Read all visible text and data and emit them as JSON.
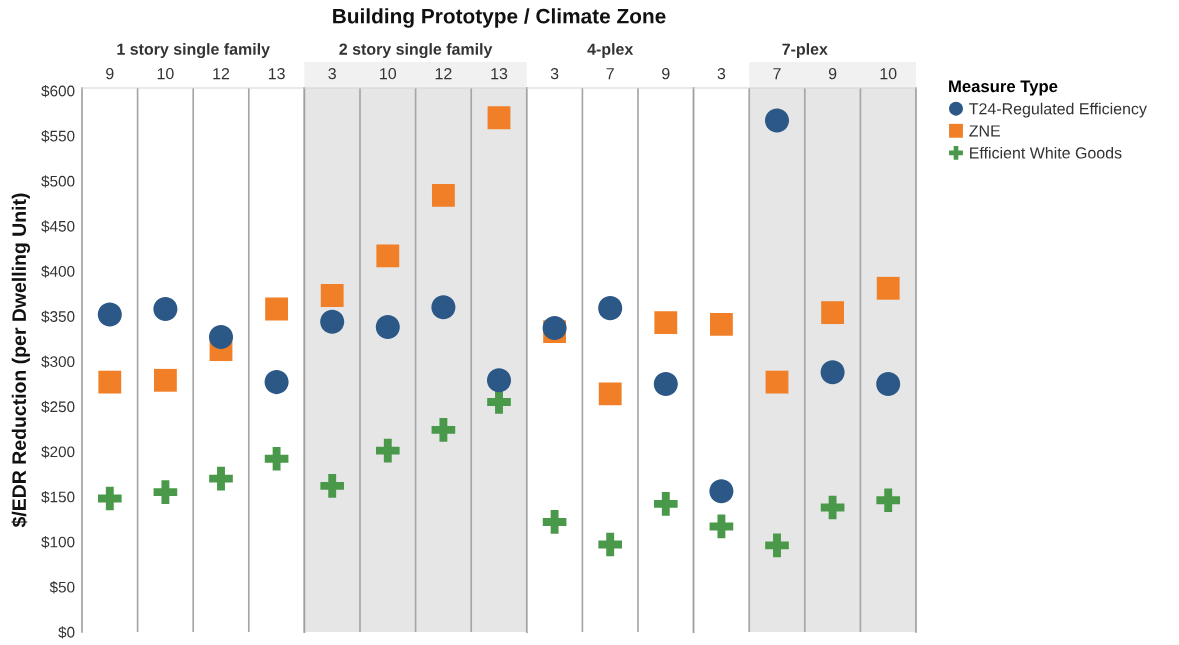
{
  "chart_data": [
    {
      "type": "scatter",
      "title": "1 story single family",
      "ylabel": "$/EDR Reduction (per Dwelling Unit)",
      "annotations": [
        "Building Prototype / Climate Zone"
      ],
      "legend_title": "Measure Type",
      "legend": "top right",
      "categories": [
        "9",
        "10",
        "12",
        "13"
      ],
      "series": [
        {
          "name": "T24-Regulated Efficiency",
          "color": "#2b5886",
          "marker": "circle",
          "values": [
            352,
            358,
            327,
            277
          ]
        },
        {
          "name": "ZNE",
          "color": "#f07f27",
          "marker": "square",
          "values": [
            277,
            279,
            313,
            358
          ]
        },
        {
          "name": "Efficient White Goods",
          "color": "#4a984a",
          "marker": "cross",
          "values": [
            148,
            155,
            170,
            192
          ]
        }
      ],
      "ylim": [
        0,
        603
      ],
      "yticks": [
        {
          "value": 0,
          "label": "$0"
        },
        {
          "value": 50,
          "label": "$50"
        },
        {
          "value": 100,
          "label": "$100"
        },
        {
          "value": 150,
          "label": "$150"
        },
        {
          "value": 200,
          "label": "$200"
        },
        {
          "value": 250,
          "label": "$250"
        },
        {
          "value": 300,
          "label": "$300"
        },
        {
          "value": 350,
          "label": "$350"
        },
        {
          "value": 400,
          "label": "$400"
        },
        {
          "value": 450,
          "label": "$450"
        },
        {
          "value": 500,
          "label": "$500"
        },
        {
          "value": 550,
          "label": "$550"
        },
        {
          "value": 600,
          "label": "$600"
        }
      ],
      "grid": "x"
    },
    {
      "type": "scatter",
      "title": "2 story single family",
      "categories": [
        "3",
        "10",
        "12",
        "13"
      ],
      "series": [
        {
          "color": "#2b5886",
          "marker": "circle",
          "values": [
            344,
            338,
            360,
            279
          ]
        },
        {
          "color": "#f07f27",
          "marker": "square",
          "values": [
            373,
            417,
            484,
            570
          ]
        },
        {
          "color": "#4a984a",
          "marker": "cross",
          "values": [
            162,
            201,
            224,
            255
          ]
        }
      ],
      "ylim": [
        0,
        603
      ],
      "tick_labels": "x",
      "grid": "x",
      "bands": [
        {
          "axis": "x",
          "from": "3",
          "to": "13",
          "color": "#e6e6e6"
        }
      ]
    },
    {
      "type": "scatter",
      "title": "4-plex",
      "categories": [
        "3",
        "7",
        "9"
      ],
      "series": [
        {
          "color": "#2b5886",
          "marker": "circle",
          "values": [
            337,
            359,
            275
          ]
        },
        {
          "color": "#f07f27",
          "marker": "square",
          "values": [
            333,
            264,
            343
          ]
        },
        {
          "color": "#4a984a",
          "marker": "cross",
          "values": [
            122,
            97,
            142
          ]
        }
      ],
      "ylim": [
        0,
        603
      ],
      "tick_labels": "x",
      "grid": "x"
    },
    {
      "type": "scatter",
      "title": "7-plex",
      "categories": [
        "3",
        "7",
        "9",
        "10"
      ],
      "series": [
        {
          "color": "#2b5886",
          "marker": "circle",
          "values": [
            156,
            567,
            288,
            275
          ]
        },
        {
          "color": "#f07f27",
          "marker": "square",
          "values": [
            341,
            277,
            354,
            381
          ]
        },
        {
          "color": "#4a984a",
          "marker": "cross",
          "values": [
            117,
            96,
            138,
            146
          ]
        }
      ],
      "ylim": [
        0,
        603
      ],
      "tick_labels": "x",
      "grid": "x",
      "bands": [
        {
          "axis": "x",
          "from": "7",
          "to": "10",
          "color": "#e6e6e6"
        }
      ]
    }
  ]
}
